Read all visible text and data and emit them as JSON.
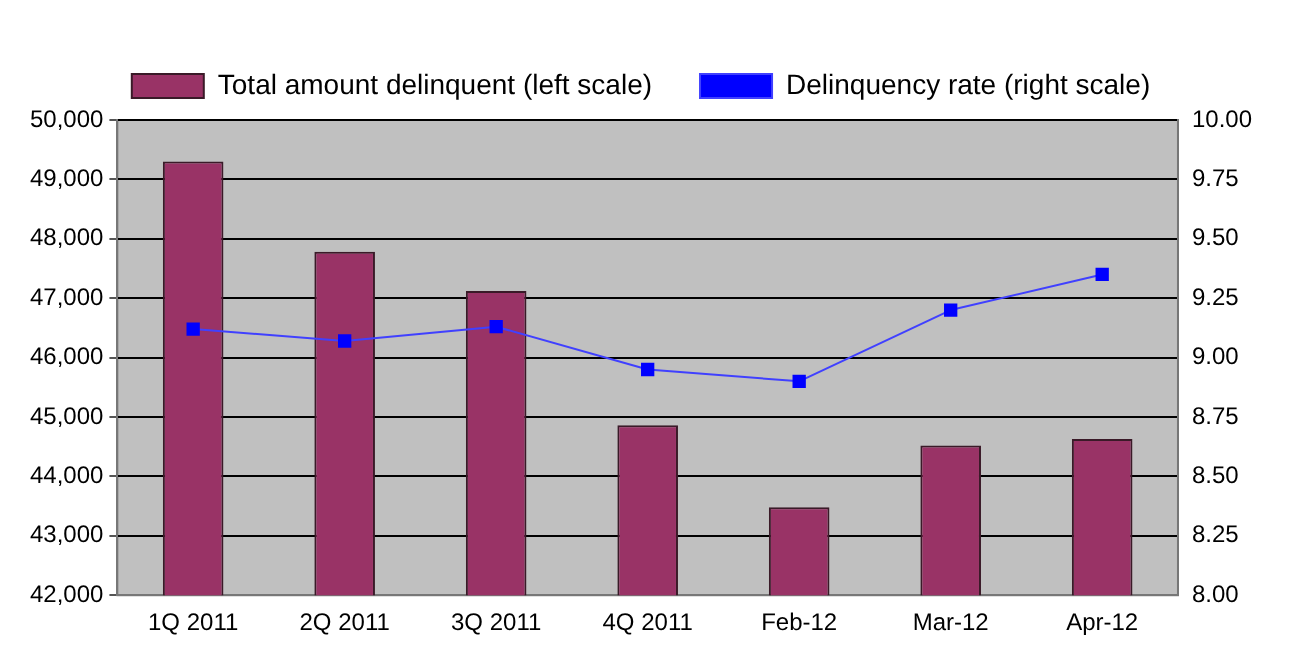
{
  "chart_data": {
    "type": "bar",
    "categories": [
      "1Q 2011",
      "2Q 2011",
      "3Q 2011",
      "4Q 2011",
      "Feb-12",
      "Mar-12",
      "Apr-12"
    ],
    "series": [
      {
        "name": "Total amount delinquent (left scale)",
        "color": "#993366",
        "values": [
          49300,
          47780,
          47120,
          44860,
          43480,
          44520,
          44630
        ]
      },
      {
        "name": "Delinquency rate (right scale)",
        "type": "line",
        "axis": "y2",
        "color": "#0000ff",
        "marker": "square",
        "values": [
          9.12,
          9.07,
          9.13,
          8.95,
          8.9,
          9.2,
          9.35
        ]
      }
    ],
    "ylim": [
      42000,
      50000
    ],
    "yticks": [
      {
        "value": 42000,
        "label": "42,000"
      },
      {
        "value": 43000,
        "label": "43,000"
      },
      {
        "value": 44000,
        "label": "44,000"
      },
      {
        "value": 45000,
        "label": "45,000"
      },
      {
        "value": 46000,
        "label": "46,000"
      },
      {
        "value": 47000,
        "label": "47,000"
      },
      {
        "value": 48000,
        "label": "48,000"
      },
      {
        "value": 49000,
        "label": "49,000"
      },
      {
        "value": 50000,
        "label": "50,000"
      }
    ],
    "y2lim": [
      8,
      10
    ],
    "y2ticks": [
      {
        "value": 8,
        "label": "8.00"
      },
      {
        "value": 8.25,
        "label": "8.25"
      },
      {
        "value": 8.5,
        "label": "8.50"
      },
      {
        "value": 8.75,
        "label": "8.75"
      },
      {
        "value": 9,
        "label": "9.00"
      },
      {
        "value": 9.25,
        "label": "9.25"
      },
      {
        "value": 9.5,
        "label": "9.50"
      },
      {
        "value": 9.75,
        "label": "9.75"
      },
      {
        "value": 10,
        "label": "10.00"
      }
    ],
    "grid": "y",
    "legend": "top"
  }
}
